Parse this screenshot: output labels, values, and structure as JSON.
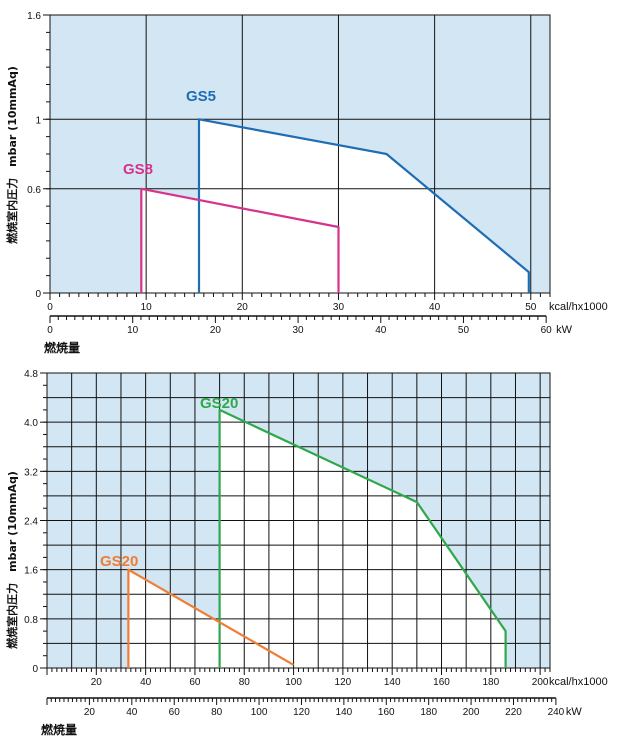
{
  "colors": {
    "plot_bg": "#d3e6f3",
    "grid": "#111111",
    "GS5": "#1f6db3",
    "GS8": "#d6338a",
    "GS20_large": "#2ea84a",
    "GS20_small": "#ef7d33"
  },
  "chart_data": [
    {
      "type": "area",
      "ylabel": "燃焼室内圧力　mbar (10mmAq)",
      "xlabel": "燃焼量",
      "x_unit_primary": "kcal/hx1000",
      "x_unit_secondary": "kW",
      "xlim": [
        0,
        52
      ],
      "ylim": [
        0,
        1.6
      ],
      "grid": true,
      "y_ticks": [
        0,
        0.6,
        1,
        1.6
      ],
      "y_ticks_major": [
        0,
        0.6,
        1,
        1.6
      ],
      "y_ticks_minor_step": 0.1,
      "x_ticks_primary": [
        0,
        10,
        20,
        30,
        40,
        50
      ],
      "x_ticks_secondary": [
        0,
        10,
        20,
        30,
        40,
        50,
        60
      ],
      "series": [
        {
          "name": "GS5",
          "color_key": "GS5",
          "points": [
            [
              15.5,
              0
            ],
            [
              15.5,
              1.0
            ],
            [
              35.0,
              0.8
            ],
            [
              49.8,
              0.12
            ],
            [
              49.8,
              0
            ]
          ]
        },
        {
          "name": "GS8",
          "color_key": "GS8",
          "points": [
            [
              9.5,
              0
            ],
            [
              9.5,
              0.6
            ],
            [
              30.0,
              0.38
            ],
            [
              30.0,
              0
            ]
          ]
        }
      ]
    },
    {
      "type": "area",
      "ylabel": "燃焼室内圧力　mbar (10mmAq)",
      "xlabel": "燃焼量",
      "x_unit_primary": "kcal/hx1000",
      "x_unit_secondary": "kW",
      "xlim": [
        0,
        204
      ],
      "ylim": [
        0,
        4.8
      ],
      "grid": true,
      "y_ticks": [
        0,
        0.8,
        1.6,
        2.4,
        3.2,
        4.0,
        4.8
      ],
      "y_ticks_minor_step": 0.2,
      "x_ticks_primary": [
        20,
        40,
        60,
        80,
        100,
        120,
        140,
        160,
        180,
        200
      ],
      "x_ticks_secondary": [
        20,
        40,
        60,
        80,
        100,
        120,
        140,
        160,
        180,
        200,
        220,
        240
      ],
      "series": [
        {
          "name": "GS20",
          "color_key": "GS20_large",
          "points": [
            [
              70,
              0
            ],
            [
              70,
              4.2
            ],
            [
              150,
              2.7
            ],
            [
              186,
              0.6
            ],
            [
              186,
              0
            ]
          ]
        },
        {
          "name": "GS20",
          "color_key": "GS20_small",
          "points": [
            [
              33,
              0
            ],
            [
              33,
              1.6
            ],
            [
              100,
              0.05
            ]
          ]
        }
      ]
    }
  ]
}
